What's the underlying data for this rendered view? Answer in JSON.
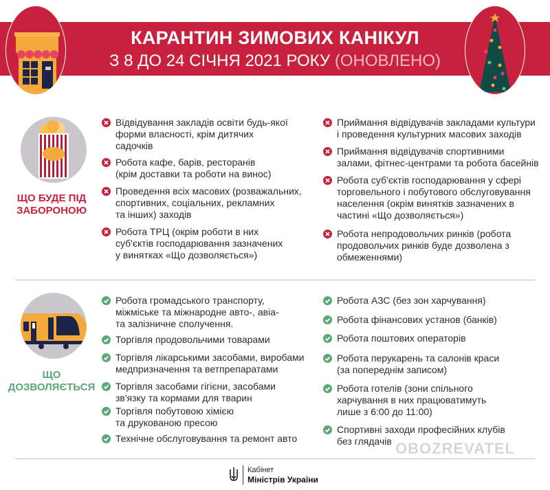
{
  "header": {
    "title": "КАРАНТИН ЗИМОВИХ КАНІКУЛ",
    "subtitle": "З 8 ДО 24 СІЧНЯ 2021 РОКУ",
    "subtitle_note": "(ОНОВЛЕНО)",
    "left_icon": "shop-icon",
    "right_icon": "christmas-tree-icon"
  },
  "colors": {
    "accent_red": "#c8213e",
    "accent_green": "#5aa877",
    "icon_circle": "#c9c6cc"
  },
  "forbidden": {
    "label": "ЩО БУДЕ ПІД\nЗАБОРОНОЮ",
    "icon": "popcorn-icon",
    "left": [
      "Відвідування закладів освіти будь-якої\nформи власності, крім дитячих\nсадочків",
      "Робота кафе, барів, ресторанів\n(крім доставки та роботи на винос)",
      "Проведення всіх масових (розважальних,\nспортивних, соціальних, рекламних\nта інших) заходів",
      "Робота ТРЦ (окрім роботи в них\nсуб'єктів господарювання зазначених\nу винятках «Що дозволяється»)"
    ],
    "right": [
      "Приймання відвідувачів закладами культури\nі проведення культурних масових заходів",
      "Приймання відвідувачів спортивними\nзалами, фітнес-центрами та робота басейнів",
      "Робота суб'єктів господарювання у сфері\nторговельного і побутового обслуговування\nнаселення (окрім винятків зазначених в\nчастині «Що дозволяється»)",
      "Робота непродовольчих ринків (робота\nпродовольчих ринків буде дозволена з\nобмеженнями)"
    ]
  },
  "allowed": {
    "label": "ЩО\nДОЗВОЛЯЄТЬСЯ",
    "icon": "train-icon",
    "left": [
      "Робота громадського транспорту,\nміжміське та міжнародне авто-, авіа-\nта залізничне сполучення.",
      "Торгівля продовольчими товарами",
      "Торгівля лікарськими засобами, виробами\nмедпризначення та ветпрепаратами",
      "Торгівля засобами гігієни, засобами\nзв'язку та кормами для тварин",
      "Торгівля побутовою хімією\nта друкованою пресою",
      "Технічне обслуговування та ремонт авто"
    ],
    "right": [
      "Робота АЗС (без зон харчування)",
      "Робота фінансових установ (банків)",
      "Робота поштових операторів",
      "Робота перукарень та салонів краси\n(за попереднім записом)",
      "Робота готелів (зони спільного\nхарчування в них працюватимуть\nлише з 6:00 до 11:00)",
      "Спортивні заходи професійних клубів\nбез глядачів"
    ]
  },
  "footer": {
    "line1": "Кабінет",
    "line2": "Міністрів України",
    "logo": "trident-icon"
  },
  "watermark": "OBOZREVATEL"
}
